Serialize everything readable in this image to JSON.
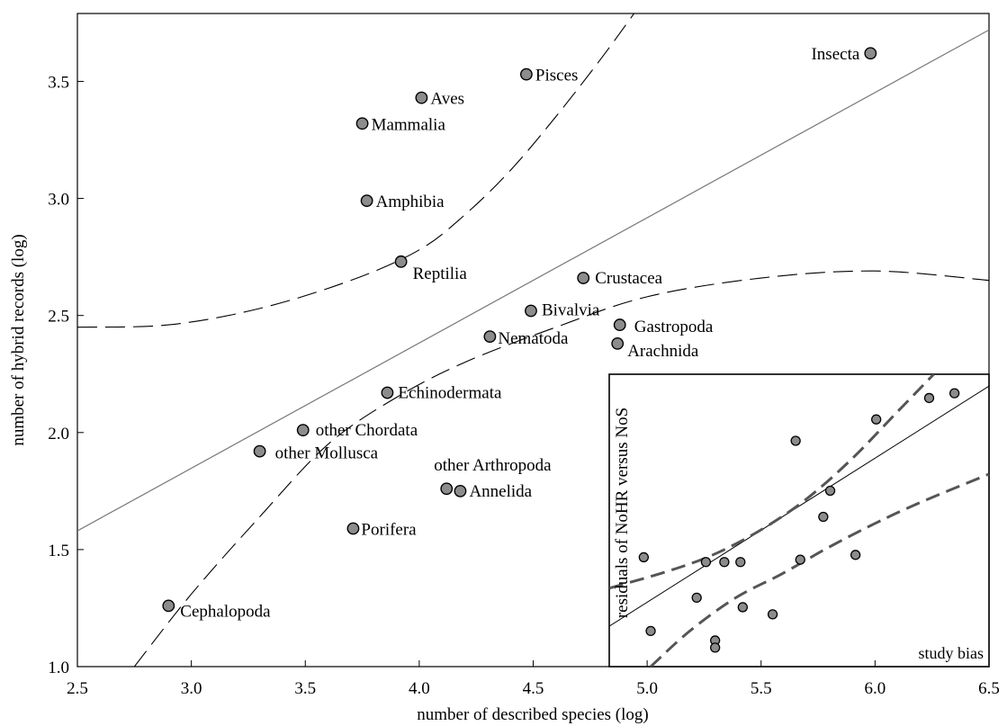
{
  "chart_data": [
    {
      "type": "scatter",
      "xlabel": "number of described species (log)",
      "ylabel": "number of hybrid records (log)",
      "xlim": [
        2.5,
        6.5
      ],
      "ylim": [
        1.0,
        3.8
      ],
      "x_ticks": [
        "2.5",
        "3.0",
        "3.5",
        "4.0",
        "4.5",
        "5.0",
        "5.5",
        "6.0",
        "6.5"
      ],
      "y_ticks": [
        "1.0",
        "1.5",
        "2.0",
        "2.5",
        "3.0",
        "3.5"
      ],
      "grid": false,
      "points": [
        {
          "label": "Insecta",
          "x": 5.98,
          "y": 3.62
        },
        {
          "label": "Pisces",
          "x": 4.47,
          "y": 3.53
        },
        {
          "label": "Aves",
          "x": 4.01,
          "y": 3.43
        },
        {
          "label": "Mammalia",
          "x": 3.75,
          "y": 3.32
        },
        {
          "label": "Amphibia",
          "x": 3.77,
          "y": 2.99
        },
        {
          "label": "Reptilia",
          "x": 3.92,
          "y": 2.73
        },
        {
          "label": "Crustacea",
          "x": 4.72,
          "y": 2.66
        },
        {
          "label": "Bivalvia",
          "x": 4.49,
          "y": 2.52
        },
        {
          "label": "Gastropoda",
          "x": 4.88,
          "y": 2.46
        },
        {
          "label": "Nematoda",
          "x": 4.31,
          "y": 2.41
        },
        {
          "label": "Arachnida",
          "x": 4.87,
          "y": 2.38
        },
        {
          "label": "Echinodermata",
          "x": 3.86,
          "y": 2.17
        },
        {
          "label": "other Chordata",
          "x": 3.49,
          "y": 2.01
        },
        {
          "label": "other Mollusca",
          "x": 3.3,
          "y": 1.92
        },
        {
          "label": "other Arthropoda",
          "x": 4.12,
          "y": 1.76
        },
        {
          "label": "Annelida",
          "x": 4.18,
          "y": 1.75
        },
        {
          "label": "Porifera",
          "x": 3.71,
          "y": 1.59
        },
        {
          "label": "Cephalopoda",
          "x": 2.9,
          "y": 1.26
        }
      ],
      "fit_line": {
        "x": [
          2.5,
          6.5
        ],
        "y": [
          1.58,
          3.72
        ]
      },
      "ci_upper": [
        {
          "x": 2.5,
          "y": 2.45
        },
        {
          "x": 2.9,
          "y": 2.46
        },
        {
          "x": 3.3,
          "y": 2.53
        },
        {
          "x": 3.7,
          "y": 2.65
        },
        {
          "x": 4.0,
          "y": 2.78
        },
        {
          "x": 4.2,
          "y": 2.93
        },
        {
          "x": 4.4,
          "y": 3.12
        },
        {
          "x": 4.6,
          "y": 3.35
        },
        {
          "x": 4.8,
          "y": 3.6
        },
        {
          "x": 4.95,
          "y": 3.8
        }
      ],
      "ci_lower": [
        {
          "x": 2.75,
          "y": 1.0
        },
        {
          "x": 3.0,
          "y": 1.31
        },
        {
          "x": 3.3,
          "y": 1.64
        },
        {
          "x": 3.6,
          "y": 1.95
        },
        {
          "x": 3.9,
          "y": 2.15
        },
        {
          "x": 4.2,
          "y": 2.3
        },
        {
          "x": 4.6,
          "y": 2.45
        },
        {
          "x": 5.0,
          "y": 2.58
        },
        {
          "x": 5.5,
          "y": 2.66
        },
        {
          "x": 6.0,
          "y": 2.69
        },
        {
          "x": 6.5,
          "y": 2.65
        }
      ]
    },
    {
      "type": "scatter",
      "title": "study bias",
      "ylabel": "residuals of NoHR versus NoS",
      "xlim": [
        4.85,
        6.5
      ],
      "ylim": [
        1.05,
        2.28
      ],
      "points": [
        {
          "x": 5.0,
          "y": 1.51
        },
        {
          "x": 5.03,
          "y": 1.2
        },
        {
          "x": 5.23,
          "y": 1.34
        },
        {
          "x": 5.27,
          "y": 1.49
        },
        {
          "x": 5.31,
          "y": 1.16
        },
        {
          "x": 5.31,
          "y": 1.13
        },
        {
          "x": 5.35,
          "y": 1.49
        },
        {
          "x": 5.42,
          "y": 1.49
        },
        {
          "x": 5.43,
          "y": 1.3
        },
        {
          "x": 5.56,
          "y": 1.27
        },
        {
          "x": 5.66,
          "y": 2.0
        },
        {
          "x": 5.68,
          "y": 1.5
        },
        {
          "x": 5.78,
          "y": 1.68
        },
        {
          "x": 5.81,
          "y": 1.79
        },
        {
          "x": 5.92,
          "y": 1.52
        },
        {
          "x": 6.01,
          "y": 2.09
        },
        {
          "x": 6.24,
          "y": 2.18
        },
        {
          "x": 6.35,
          "y": 2.2
        }
      ],
      "fit_line": {
        "x": [
          4.85,
          6.5
        ],
        "y": [
          1.22,
          2.23
        ]
      },
      "ci_upper": [
        {
          "x": 4.85,
          "y": 1.38
        },
        {
          "x": 5.1,
          "y": 1.45
        },
        {
          "x": 5.3,
          "y": 1.52
        },
        {
          "x": 5.5,
          "y": 1.62
        },
        {
          "x": 5.7,
          "y": 1.75
        },
        {
          "x": 5.9,
          "y": 1.92
        },
        {
          "x": 6.1,
          "y": 2.12
        },
        {
          "x": 6.26,
          "y": 2.28
        }
      ],
      "ci_lower": [
        {
          "x": 5.03,
          "y": 1.05
        },
        {
          "x": 5.2,
          "y": 1.2
        },
        {
          "x": 5.4,
          "y": 1.34
        },
        {
          "x": 5.6,
          "y": 1.44
        },
        {
          "x": 5.8,
          "y": 1.55
        },
        {
          "x": 6.0,
          "y": 1.65
        },
        {
          "x": 6.2,
          "y": 1.74
        },
        {
          "x": 6.5,
          "y": 1.86
        }
      ]
    }
  ]
}
